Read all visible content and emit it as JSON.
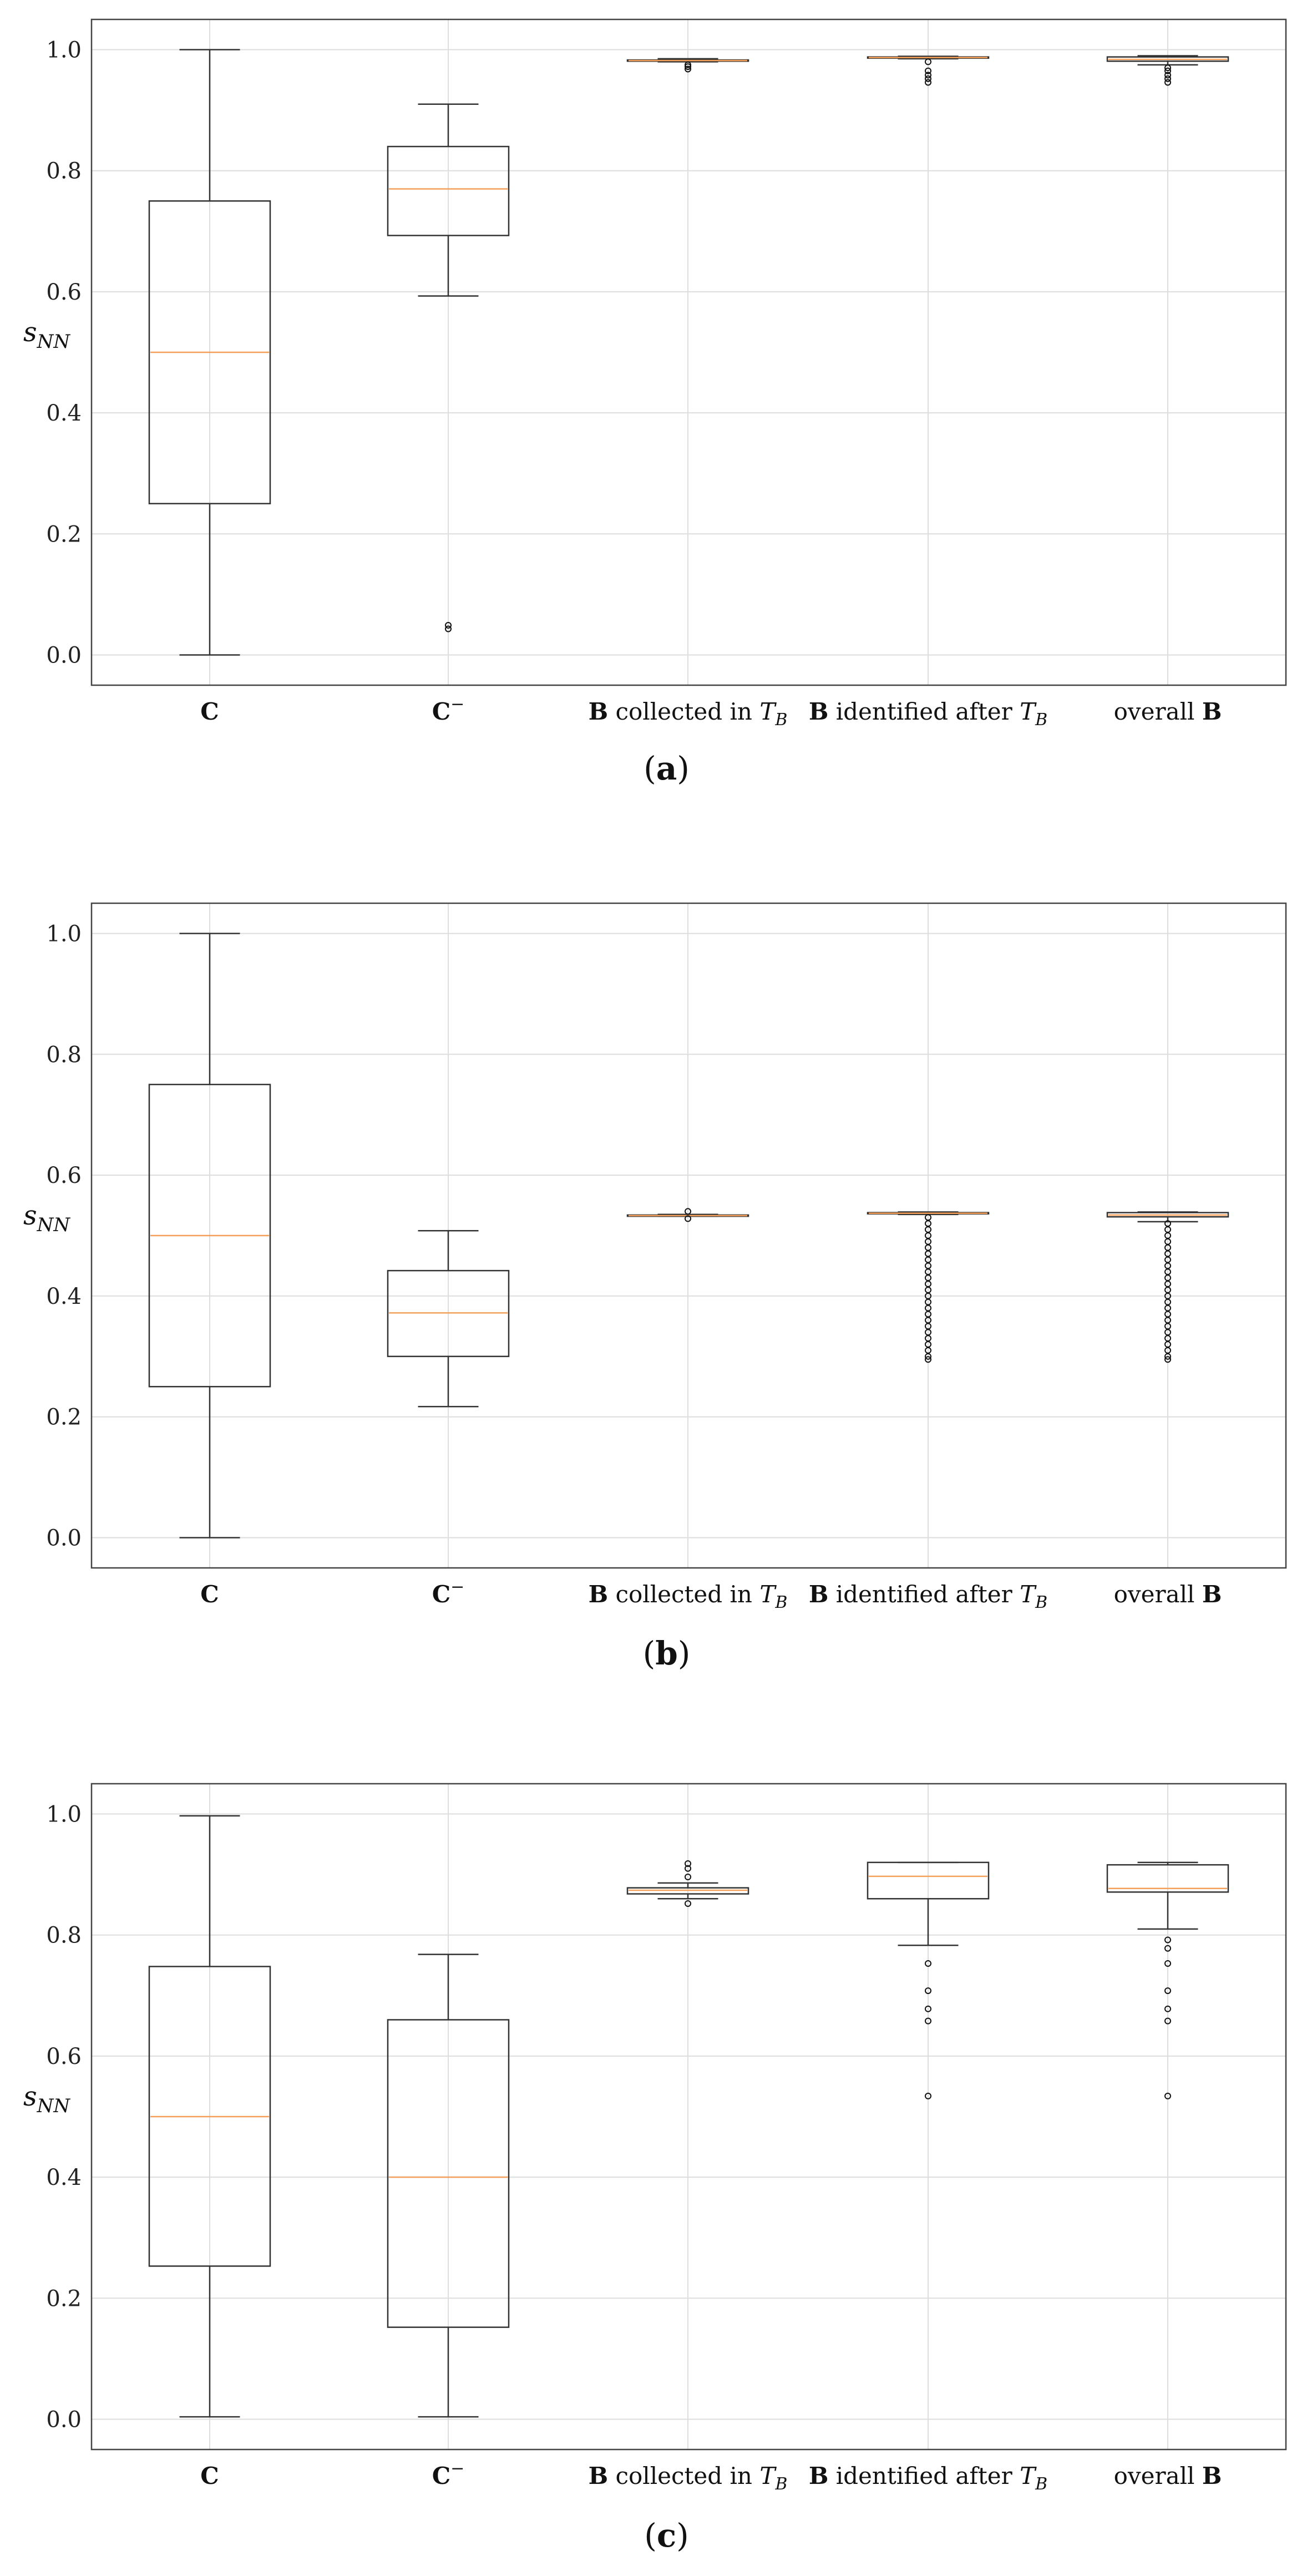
{
  "y_axis_label": "s",
  "y_axis_label_subscript": "NN",
  "category_labels": [
    {
      "bold": "C",
      "rest": "",
      "italic": "",
      "sub": "",
      "sup": ""
    },
    {
      "bold": "C",
      "rest": "",
      "italic": "",
      "sub": "",
      "sup": "−"
    },
    {
      "bold": "B",
      "rest": " collected in ",
      "italic": "T",
      "sub": "B",
      "sup": ""
    },
    {
      "bold": "B",
      "rest": " identified after ",
      "italic": "T",
      "sub": "B",
      "sup": ""
    },
    {
      "bold": "",
      "rest": "overall ",
      "italic": "",
      "sub": "",
      "sup": "",
      "bold_after": "B"
    }
  ],
  "colors": {
    "box": "#333333",
    "median": "#f5a05a",
    "grid": "#dddddd",
    "frame": "#444444"
  },
  "chart_data": [
    {
      "type": "boxplot",
      "caption_open": "(",
      "caption_letter": "a",
      "caption_close": ")",
      "ylim": [
        -0.05,
        1.05
      ],
      "yticks": [
        0.0,
        0.2,
        0.4,
        0.6,
        0.8,
        1.0
      ],
      "ytick_labels": [
        "0.0",
        "0.2",
        "0.4",
        "0.6",
        "0.8",
        "1.0"
      ],
      "grid": true,
      "boxes": [
        {
          "category": "C",
          "whislo": 0.0,
          "q1": 0.25,
          "med": 0.5,
          "q3": 0.75,
          "whishi": 1.0,
          "fliers": []
        },
        {
          "category": "C−",
          "whislo": 0.593,
          "q1": 0.693,
          "med": 0.77,
          "q3": 0.84,
          "whishi": 0.91,
          "fliers": [
            0.043,
            0.049
          ]
        },
        {
          "category": "B collected in TB",
          "whislo": 0.98,
          "q1": 0.981,
          "med": 0.982,
          "q3": 0.983,
          "whishi": 0.985,
          "fliers": [
            0.975,
            0.972,
            0.968
          ]
        },
        {
          "category": "B identified after TB",
          "whislo": 0.985,
          "q1": 0.986,
          "med": 0.987,
          "q3": 0.988,
          "whishi": 0.989,
          "fliers": [
            0.98,
            0.965,
            0.958,
            0.952,
            0.946
          ]
        },
        {
          "category": "overall B",
          "whislo": 0.975,
          "q1": 0.981,
          "med": 0.984,
          "q3": 0.988,
          "whishi": 0.99,
          "fliers": [
            0.97,
            0.965,
            0.958,
            0.952,
            0.946
          ]
        }
      ]
    },
    {
      "type": "boxplot",
      "caption_open": "(",
      "caption_letter": "b",
      "caption_close": ")",
      "ylim": [
        -0.05,
        1.05
      ],
      "yticks": [
        0.0,
        0.2,
        0.4,
        0.6,
        0.8,
        1.0
      ],
      "ytick_labels": [
        "0.0",
        "0.2",
        "0.4",
        "0.6",
        "0.8",
        "1.0"
      ],
      "grid": true,
      "boxes": [
        {
          "category": "C",
          "whislo": 0.0,
          "q1": 0.25,
          "med": 0.5,
          "q3": 0.75,
          "whishi": 1.0,
          "fliers": []
        },
        {
          "category": "C−",
          "whislo": 0.217,
          "q1": 0.3,
          "med": 0.372,
          "q3": 0.442,
          "whishi": 0.508,
          "fliers": []
        },
        {
          "category": "B collected in TB",
          "whislo": 0.532,
          "q1": 0.532,
          "med": 0.533,
          "q3": 0.534,
          "whishi": 0.535,
          "fliers": [
            0.54,
            0.528
          ]
        },
        {
          "category": "B identified after TB",
          "whislo": 0.535,
          "q1": 0.536,
          "med": 0.537,
          "q3": 0.538,
          "whishi": 0.539,
          "fliers": [
            0.53,
            0.52,
            0.51,
            0.5,
            0.49,
            0.48,
            0.47,
            0.46,
            0.45,
            0.44,
            0.43,
            0.42,
            0.41,
            0.4,
            0.39,
            0.38,
            0.37,
            0.36,
            0.35,
            0.34,
            0.33,
            0.32,
            0.31,
            0.3,
            0.295
          ]
        },
        {
          "category": "overall B",
          "whislo": 0.523,
          "q1": 0.531,
          "med": 0.534,
          "q3": 0.538,
          "whishi": 0.539,
          "fliers": [
            0.52,
            0.51,
            0.5,
            0.49,
            0.48,
            0.47,
            0.46,
            0.45,
            0.44,
            0.43,
            0.42,
            0.41,
            0.4,
            0.39,
            0.38,
            0.37,
            0.36,
            0.35,
            0.34,
            0.33,
            0.32,
            0.31,
            0.3,
            0.295
          ]
        }
      ]
    },
    {
      "type": "boxplot",
      "caption_open": "(",
      "caption_letter": "c",
      "caption_close": ")",
      "ylim": [
        -0.05,
        1.05
      ],
      "yticks": [
        0.0,
        0.2,
        0.4,
        0.6,
        0.8,
        1.0
      ],
      "ytick_labels": [
        "0.0",
        "0.2",
        "0.4",
        "0.6",
        "0.8",
        "1.0"
      ],
      "grid": true,
      "boxes": [
        {
          "category": "C",
          "whislo": 0.004,
          "q1": 0.253,
          "med": 0.5,
          "q3": 0.748,
          "whishi": 0.997,
          "fliers": []
        },
        {
          "category": "C−",
          "whislo": 0.004,
          "q1": 0.152,
          "med": 0.4,
          "q3": 0.66,
          "whishi": 0.768,
          "fliers": []
        },
        {
          "category": "B collected in TB",
          "whislo": 0.86,
          "q1": 0.868,
          "med": 0.874,
          "q3": 0.878,
          "whishi": 0.886,
          "fliers": [
            0.918,
            0.91,
            0.896,
            0.852
          ]
        },
        {
          "category": "B identified after TB",
          "whislo": 0.783,
          "q1": 0.86,
          "med": 0.897,
          "q3": 0.92,
          "whishi": 0.92,
          "fliers": [
            0.753,
            0.708,
            0.678,
            0.658,
            0.534
          ]
        },
        {
          "category": "overall B",
          "whislo": 0.81,
          "q1": 0.871,
          "med": 0.877,
          "q3": 0.916,
          "whishi": 0.92,
          "fliers": [
            0.792,
            0.778,
            0.753,
            0.708,
            0.678,
            0.658,
            0.534
          ]
        }
      ]
    }
  ]
}
